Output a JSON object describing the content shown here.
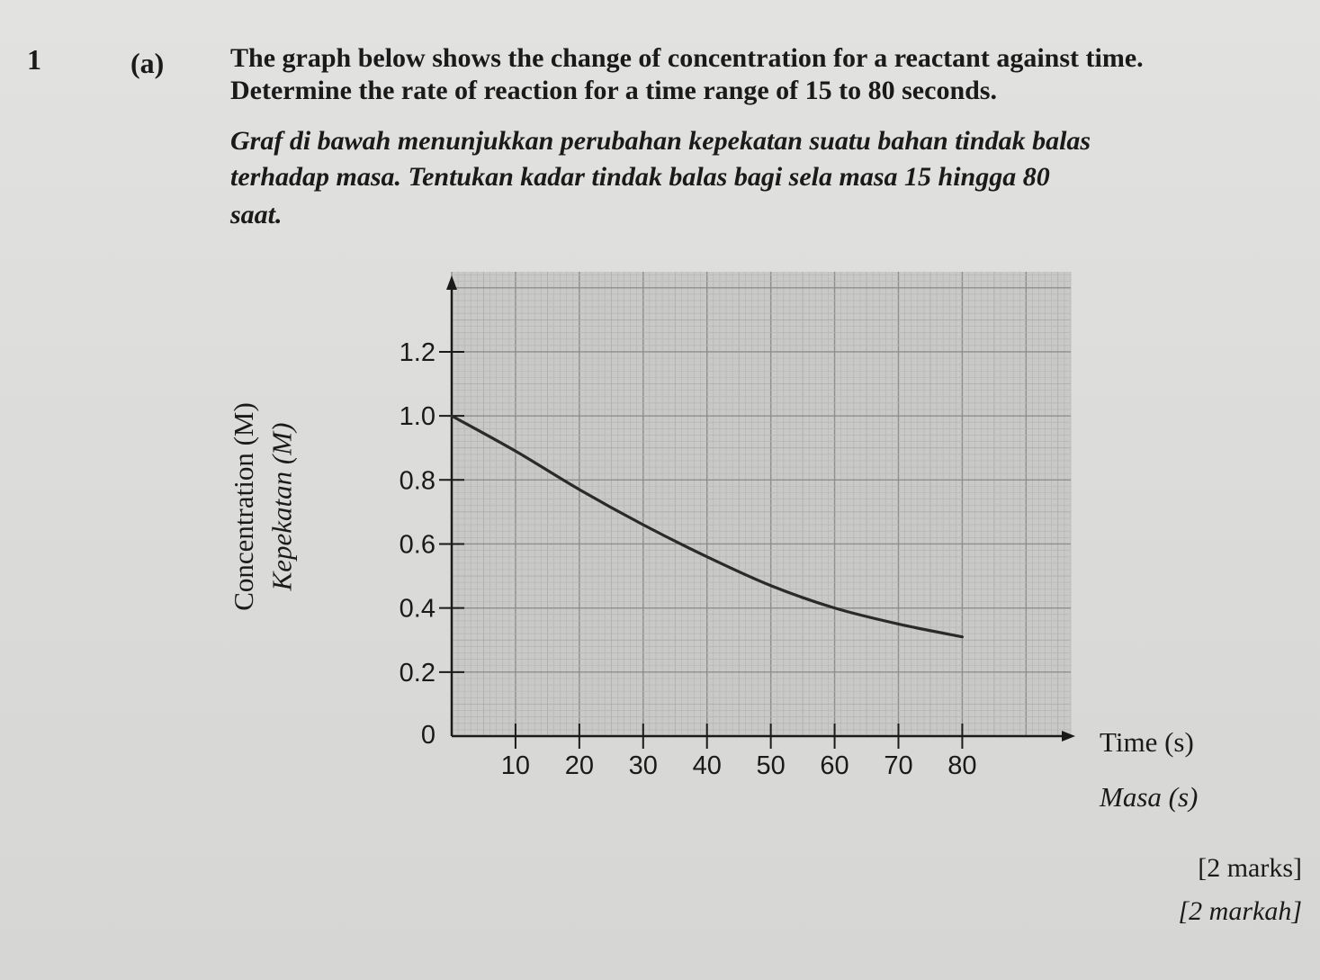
{
  "question": {
    "number": "1",
    "part": "(a)",
    "en_lines": [
      "The graph below shows the change of concentration for a reactant against time.",
      "Determine the rate of reaction for a time range of 15 to 80 seconds."
    ],
    "ms_lines": [
      "Graf di bawah menunjukkan perubahan kepekatan suatu bahan tindak balas",
      "terhadap masa. Tentukan kadar tindak balas bagi sela masa 15 hingga 80",
      "saat."
    ],
    "marks_en": "[2 marks]",
    "marks_ms": "[2 markah]"
  },
  "chart_data": {
    "type": "line",
    "ylabel": "Concentration (M)",
    "ylabel_ms": "Kepekatan (M)",
    "xlabel": "Time (s)",
    "xlabel_ms": "Masa (s)",
    "x_ticks": [
      "10",
      "20",
      "30",
      "40",
      "50",
      "60",
      "70",
      "80"
    ],
    "y_ticks": [
      "0",
      "0.2",
      "0.4",
      "0.6",
      "0.8",
      "1.0",
      "1.2"
    ],
    "xlim": [
      0,
      97
    ],
    "ylim": [
      0,
      1.45
    ],
    "grid": true,
    "series": [
      {
        "x": [
          0,
          10,
          20,
          30,
          40,
          50,
          60,
          70,
          80
        ],
        "y": [
          1.0,
          0.89,
          0.77,
          0.66,
          0.56,
          0.47,
          0.4,
          0.35,
          0.31
        ]
      }
    ]
  }
}
